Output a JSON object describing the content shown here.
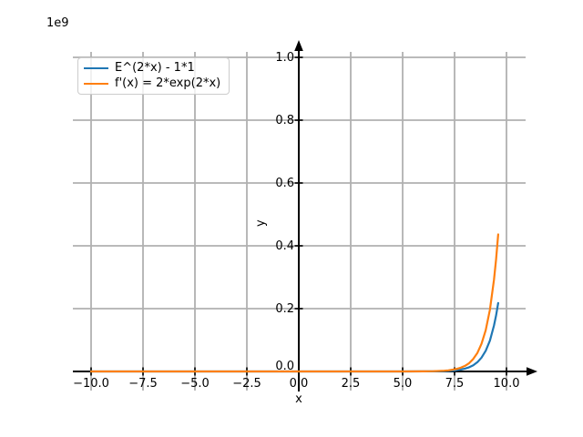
{
  "chart_data": {
    "type": "line",
    "title": "",
    "offset_text": "1e9",
    "xlabel": "x",
    "ylabel": "y",
    "grid": true,
    "grid_color": "#b0b0b0",
    "axis_color": "#000000",
    "background_color": "#ffffff",
    "xlim": [
      -10.9,
      10.9
    ],
    "ylim_in_1e9_units": [
      -0.06,
      1.02
    ],
    "xticks": [
      -10,
      -7.5,
      -5,
      -2.5,
      0,
      2.5,
      5,
      7.5,
      10
    ],
    "xtick_labels": [
      "−10.0",
      "−7.5",
      "−5.0",
      "−2.5",
      "0.0",
      "2.5",
      "5.0",
      "7.5",
      "10.0"
    ],
    "yticks": [
      0,
      0.2,
      0.4,
      0.6,
      0.8,
      1.0
    ],
    "ytick_labels": [
      "0.0",
      "0.2",
      "0.4",
      "0.6",
      "0.8",
      "1.0"
    ],
    "y_unit_multiplier": "1e9",
    "legend": {
      "position": "upper left",
      "entries": [
        {
          "label": "E^(2*x) - 1*1",
          "color": "#1f77b4"
        },
        {
          "label": "f'(x) = 2*exp(2*x)",
          "color": "#ff7f0e"
        }
      ]
    },
    "series": [
      {
        "name": "E^(2*x) - 1*1",
        "color": "#1f77b4",
        "points_x_vs_y_1e9": [
          [
            -10,
            0
          ],
          [
            -7.5,
            0
          ],
          [
            -5,
            0
          ],
          [
            -2.5,
            0
          ],
          [
            0,
            0
          ],
          [
            2.5,
            0
          ],
          [
            5,
            0
          ],
          [
            6,
            0.0002
          ],
          [
            6.5,
            0.0004
          ],
          [
            7,
            0.0012
          ],
          [
            7.2,
            0.0018
          ],
          [
            7.4,
            0.0027
          ],
          [
            7.6,
            0.004
          ],
          [
            7.8,
            0.006
          ],
          [
            8,
            0.0089
          ],
          [
            8.2,
            0.0133
          ],
          [
            8.4,
            0.0198
          ],
          [
            8.6,
            0.0295
          ],
          [
            8.8,
            0.0441
          ],
          [
            9,
            0.0657
          ],
          [
            9.2,
            0.098
          ],
          [
            9.4,
            0.1463
          ],
          [
            9.5,
            0.1785
          ],
          [
            9.6,
            0.2181
          ]
        ]
      },
      {
        "name": "f'(x) = 2*exp(2*x)",
        "color": "#ff7f0e",
        "points_x_vs_y_1e9": [
          [
            -10,
            0
          ],
          [
            -7.5,
            0
          ],
          [
            -5,
            0
          ],
          [
            -2.5,
            0
          ],
          [
            0,
            0
          ],
          [
            2.5,
            0
          ],
          [
            5,
            0
          ],
          [
            6,
            0.0003
          ],
          [
            6.5,
            0.0009
          ],
          [
            7,
            0.0024
          ],
          [
            7.2,
            0.0036
          ],
          [
            7.4,
            0.0054
          ],
          [
            7.6,
            0.008
          ],
          [
            7.8,
            0.012
          ],
          [
            8,
            0.0178
          ],
          [
            8.2,
            0.0265
          ],
          [
            8.4,
            0.0396
          ],
          [
            8.6,
            0.0591
          ],
          [
            8.8,
            0.0882
          ],
          [
            9,
            0.1313
          ],
          [
            9.2,
            0.1961
          ],
          [
            9.4,
            0.2926
          ],
          [
            9.5,
            0.357
          ],
          [
            9.6,
            0.4361
          ]
        ]
      }
    ]
  }
}
